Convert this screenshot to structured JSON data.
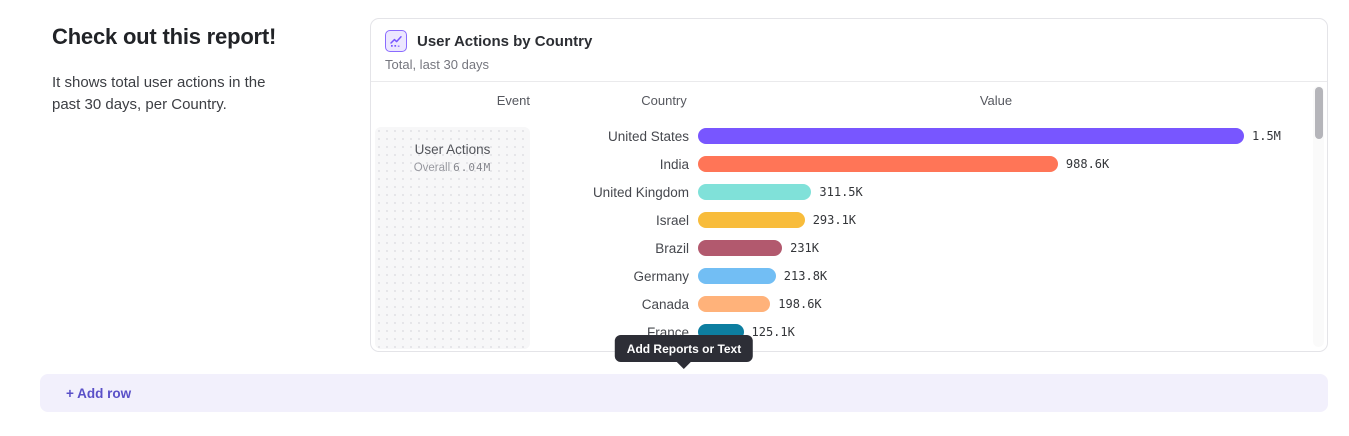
{
  "intro": {
    "heading": "Check out this report!",
    "description": "It shows total user actions in the past 30 days, per Country."
  },
  "report_card": {
    "icon": "line-chart-icon",
    "title": "User Actions by Country",
    "subtitle": "Total, last 30 days",
    "columns": [
      "Event",
      "Country",
      "Value"
    ],
    "event_cell": {
      "name": "User Actions",
      "overall_label": "Overall",
      "overall_value": "6.04M"
    },
    "accent_color": "#7856FF"
  },
  "chart_data": {
    "type": "bar",
    "orientation": "horizontal",
    "title": "User Actions by Country",
    "series_name": "User Actions",
    "overall_total": "6.04M",
    "categories": [
      "United States",
      "India",
      "United Kingdom",
      "Israel",
      "Brazil",
      "Germany",
      "Canada",
      "France"
    ],
    "values": [
      1500000,
      988600,
      311500,
      293100,
      231000,
      213800,
      198600,
      125100
    ],
    "value_labels": [
      "1.5M",
      "988.6K",
      "311.5K",
      "293.1K",
      "231K",
      "213.8K",
      "198.6K",
      "125.1K"
    ],
    "colors": [
      "#7856FF",
      "#FF7557",
      "#80E1D9",
      "#F8BC3B",
      "#B2596E",
      "#72BEF4",
      "#FFB27A",
      "#0D7EA0"
    ],
    "xlim": [
      0,
      1500000
    ],
    "grid": false,
    "legend": "none",
    "scrollable": true
  },
  "tooltip": {
    "label": "Add Reports or Text"
  },
  "add_row": {
    "label": "+ Add row"
  }
}
